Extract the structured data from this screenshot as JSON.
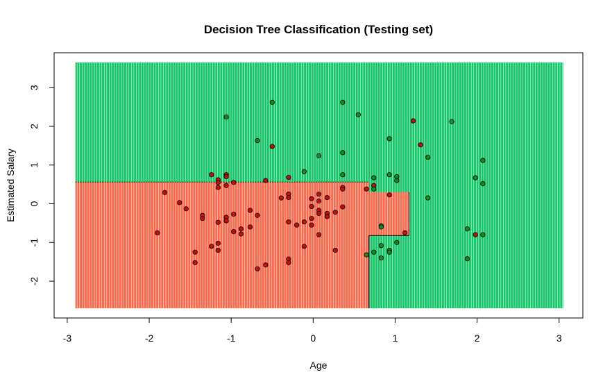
{
  "chart_data": {
    "type": "scatter",
    "title": "Decision Tree Classification (Testing set)",
    "xlabel": "Age",
    "ylabel": "Estimated Salary",
    "xlim": [
      -3.16,
      3.29
    ],
    "ylim": [
      -2.95,
      3.9
    ],
    "x_ticks": [
      -3,
      -2,
      -1,
      0,
      1,
      2,
      3
    ],
    "y_ticks": [
      -2,
      -1,
      0,
      1,
      2,
      3
    ],
    "grid": false,
    "region_colors": {
      "class_0": "#fa6a4c",
      "class_1": "#17c56a"
    },
    "point_colors": {
      "class_0": "#c50f0f",
      "class_1": "#1a8a24"
    },
    "grid_extent": {
      "x": [
        -2.9,
        3.05
      ],
      "y": [
        -2.7,
        3.65
      ]
    },
    "decision_regions": [
      {
        "class": 0,
        "x": [
          -2.9,
          0.68
        ],
        "y": [
          -2.7,
          0.56
        ]
      },
      {
        "class": 0,
        "x": [
          0.68,
          1.17
        ],
        "y": [
          -0.82,
          0.3
        ]
      }
    ],
    "background_class": 1,
    "points": [
      {
        "x": -1.9,
        "y": -0.75,
        "c": 0
      },
      {
        "x": -1.81,
        "y": 0.29,
        "c": 0
      },
      {
        "x": -1.63,
        "y": 0.03,
        "c": 0
      },
      {
        "x": -1.55,
        "y": -0.13,
        "c": 0
      },
      {
        "x": -1.44,
        "y": -1.25,
        "c": 0
      },
      {
        "x": -1.44,
        "y": -1.52,
        "c": 0
      },
      {
        "x": -1.35,
        "y": -0.3,
        "c": 0
      },
      {
        "x": -1.35,
        "y": -0.38,
        "c": 0
      },
      {
        "x": -1.24,
        "y": 0.75,
        "c": 0
      },
      {
        "x": -1.24,
        "y": -1.1,
        "c": 0
      },
      {
        "x": -1.16,
        "y": 0.62,
        "c": 0
      },
      {
        "x": -1.16,
        "y": 0.55,
        "c": 0
      },
      {
        "x": -1.16,
        "y": 0.42,
        "c": 0
      },
      {
        "x": -1.16,
        "y": -0.48,
        "c": 0
      },
      {
        "x": -1.16,
        "y": -1.02,
        "c": 0
      },
      {
        "x": -1.16,
        "y": -1.2,
        "c": 0
      },
      {
        "x": -1.06,
        "y": 0.75,
        "c": 0
      },
      {
        "x": -1.06,
        "y": 0.7,
        "c": 0
      },
      {
        "x": -1.06,
        "y": 0.47,
        "c": 0
      },
      {
        "x": -1.06,
        "y": -0.35,
        "c": 0
      },
      {
        "x": -1.06,
        "y": -0.44,
        "c": 0
      },
      {
        "x": -0.97,
        "y": 0.55,
        "c": 0
      },
      {
        "x": -0.97,
        "y": -0.27,
        "c": 0
      },
      {
        "x": -0.97,
        "y": -0.72,
        "c": 0
      },
      {
        "x": -0.88,
        "y": -0.65,
        "c": 0
      },
      {
        "x": -0.88,
        "y": -0.78,
        "c": 0
      },
      {
        "x": -0.77,
        "y": -0.17,
        "c": 0
      },
      {
        "x": -0.77,
        "y": -0.6,
        "c": 0
      },
      {
        "x": -0.68,
        "y": -0.3,
        "c": 0
      },
      {
        "x": -0.68,
        "y": -1.68,
        "c": 0
      },
      {
        "x": -0.58,
        "y": 0.6,
        "c": 0
      },
      {
        "x": -0.58,
        "y": -1.58,
        "c": 0
      },
      {
        "x": -0.5,
        "y": 1.48,
        "c": 0
      },
      {
        "x": -0.39,
        "y": 0.15,
        "c": 0
      },
      {
        "x": -0.3,
        "y": 0.68,
        "c": 0
      },
      {
        "x": -0.3,
        "y": 0.25,
        "c": 0
      },
      {
        "x": -0.3,
        "y": 0.16,
        "c": 0
      },
      {
        "x": -0.3,
        "y": -0.47,
        "c": 0
      },
      {
        "x": -0.3,
        "y": -1.43,
        "c": 0
      },
      {
        "x": -0.3,
        "y": -1.52,
        "c": 0
      },
      {
        "x": -0.2,
        "y": -0.55,
        "c": 0
      },
      {
        "x": -0.11,
        "y": -0.47,
        "c": 0
      },
      {
        "x": -0.11,
        "y": -1.1,
        "c": 0
      },
      {
        "x": -0.02,
        "y": 0.13,
        "c": 0
      },
      {
        "x": -0.02,
        "y": -0.07,
        "c": 0
      },
      {
        "x": -0.02,
        "y": -0.38,
        "c": 0
      },
      {
        "x": -0.02,
        "y": -0.55,
        "c": 0
      },
      {
        "x": 0.07,
        "y": 0.25,
        "c": 0
      },
      {
        "x": 0.07,
        "y": 0.07,
        "c": 0
      },
      {
        "x": 0.07,
        "y": -0.17,
        "c": 0
      },
      {
        "x": 0.07,
        "y": -0.25,
        "c": 0
      },
      {
        "x": 0.07,
        "y": -0.8,
        "c": 0
      },
      {
        "x": 0.17,
        "y": 0.16,
        "c": 0
      },
      {
        "x": 0.17,
        "y": -0.25,
        "c": 0
      },
      {
        "x": 0.17,
        "y": -0.33,
        "c": 0
      },
      {
        "x": 0.27,
        "y": -0.22,
        "c": 0
      },
      {
        "x": 0.27,
        "y": -1.2,
        "c": 0
      },
      {
        "x": 0.36,
        "y": 0.42,
        "c": 0
      },
      {
        "x": 0.36,
        "y": 0.38,
        "c": 0
      },
      {
        "x": 0.36,
        "y": -0.08,
        "c": 0
      },
      {
        "x": 0.65,
        "y": 0.38,
        "c": 0
      },
      {
        "x": 0.74,
        "y": 0.47,
        "c": 0
      },
      {
        "x": 0.93,
        "y": 0.23,
        "c": 0
      },
      {
        "x": 1.12,
        "y": -0.75,
        "c": 0
      },
      {
        "x": 1.22,
        "y": 2.14,
        "c": 0
      },
      {
        "x": 1.31,
        "y": 1.52,
        "c": 0
      },
      {
        "x": 1.98,
        "y": -0.8,
        "c": 0
      },
      {
        "x": -1.06,
        "y": 2.24,
        "c": 1
      },
      {
        "x": -0.68,
        "y": 1.63,
        "c": 1
      },
      {
        "x": -0.5,
        "y": 2.62,
        "c": 1
      },
      {
        "x": -0.11,
        "y": 0.83,
        "c": 1
      },
      {
        "x": 0.07,
        "y": 1.24,
        "c": 1
      },
      {
        "x": 0.36,
        "y": 2.62,
        "c": 1
      },
      {
        "x": 0.36,
        "y": 1.32,
        "c": 1
      },
      {
        "x": 0.36,
        "y": 0.75,
        "c": 1
      },
      {
        "x": 0.55,
        "y": 2.3,
        "c": 1
      },
      {
        "x": 0.65,
        "y": -1.32,
        "c": 1
      },
      {
        "x": 0.74,
        "y": 0.67,
        "c": 1
      },
      {
        "x": 0.74,
        "y": 0.38,
        "c": 1
      },
      {
        "x": 0.74,
        "y": -1.25,
        "c": 1
      },
      {
        "x": 0.83,
        "y": -0.57,
        "c": 1
      },
      {
        "x": 0.83,
        "y": -0.6,
        "c": 1
      },
      {
        "x": 0.83,
        "y": -1.08,
        "c": 1
      },
      {
        "x": 0.83,
        "y": -1.4,
        "c": 1
      },
      {
        "x": 0.93,
        "y": 1.68,
        "c": 1
      },
      {
        "x": 0.93,
        "y": 0.75,
        "c": 1
      },
      {
        "x": 0.93,
        "y": -1.2,
        "c": 1
      },
      {
        "x": 0.93,
        "y": -1.25,
        "c": 1
      },
      {
        "x": 1.02,
        "y": 0.7,
        "c": 1
      },
      {
        "x": 1.02,
        "y": 0.6,
        "c": 1
      },
      {
        "x": 1.02,
        "y": -1.0,
        "c": 1
      },
      {
        "x": 1.4,
        "y": 1.2,
        "c": 1
      },
      {
        "x": 1.4,
        "y": 0.15,
        "c": 1
      },
      {
        "x": 1.69,
        "y": 2.12,
        "c": 1
      },
      {
        "x": 1.88,
        "y": -0.65,
        "c": 1
      },
      {
        "x": 1.88,
        "y": -1.42,
        "c": 1
      },
      {
        "x": 1.98,
        "y": 0.67,
        "c": 1
      },
      {
        "x": 2.07,
        "y": 1.12,
        "c": 1
      },
      {
        "x": 2.07,
        "y": 0.52,
        "c": 1
      },
      {
        "x": 2.07,
        "y": -0.8,
        "c": 1
      }
    ]
  }
}
